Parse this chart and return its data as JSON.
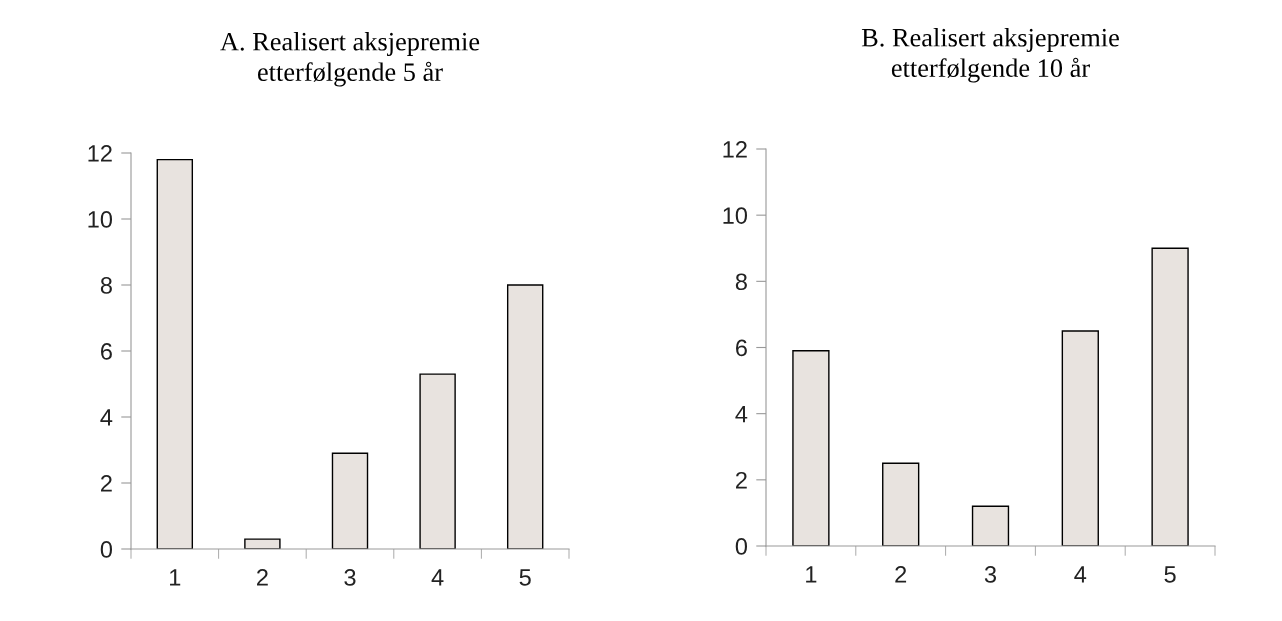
{
  "chart_data": [
    {
      "type": "bar",
      "title": "A. Realisert aksjepremie\netterfølgende 5 år",
      "categories": [
        "1",
        "2",
        "3",
        "4",
        "5"
      ],
      "values": [
        11.8,
        0.3,
        2.9,
        5.3,
        8.0
      ],
      "color": "#e8e3df",
      "ylim": [
        0,
        12
      ],
      "yticks": [
        0,
        2,
        4,
        6,
        8,
        10,
        12
      ],
      "grid": false
    },
    {
      "type": "bar",
      "title": "B. Realisert aksjepremie\netterfølgende 10 år",
      "categories": [
        "1",
        "2",
        "3",
        "4",
        "5"
      ],
      "values": [
        5.9,
        2.5,
        1.2,
        6.5,
        9.0
      ],
      "color": "#e8e3df",
      "ylim": [
        0,
        12
      ],
      "yticks": [
        0,
        2,
        4,
        6,
        8,
        10,
        12
      ],
      "grid": false
    }
  ]
}
